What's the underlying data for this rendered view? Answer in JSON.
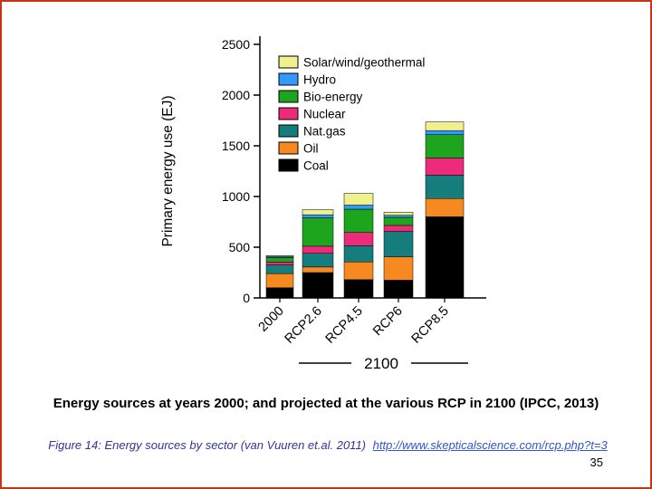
{
  "slide": {
    "caption_line1": "Energy sources at years 2000; and projected at the various RCP in 2100 (IPCC, 2013)",
    "figure_caption": "Figure 14: Energy sources by sector (van Vuuren et.al. 2011)",
    "figure_link": "http://www.skepticalscience.com/rcp.php?t=3",
    "page_number": "35"
  },
  "colors": {
    "slide_border": "#cc3311",
    "figure_text": "#333399",
    "link": "#3355cc",
    "axis": "#000000"
  },
  "chart_data": {
    "type": "bar",
    "stacked": true,
    "title": "",
    "xlabel": "",
    "ylabel": "Primary energy use (EJ)",
    "ylim": [
      0,
      2500
    ],
    "yticks": [
      0,
      500,
      1000,
      1500,
      2000,
      2500
    ],
    "grid": false,
    "legend_position": "upper-left-inside",
    "categories": [
      "2000",
      "RCP2.6",
      "RCP4.5",
      "RCP6",
      "RCP8.5"
    ],
    "group_label": "2100",
    "group_label_note": "brackets the four RCP bars",
    "series": [
      {
        "name": "Coal",
        "color": "#000000",
        "values": [
          100,
          250,
          180,
          175,
          800
        ]
      },
      {
        "name": "Oil",
        "color": "#f6891f",
        "values": [
          140,
          55,
          175,
          230,
          180
        ]
      },
      {
        "name": "Nat.gas",
        "color": "#167d7d",
        "values": [
          85,
          135,
          160,
          250,
          230
        ]
      },
      {
        "name": "Nuclear",
        "color": "#ee2a7b",
        "values": [
          28,
          70,
          130,
          60,
          170
        ]
      },
      {
        "name": "Bio-energy",
        "color": "#1da51d",
        "values": [
          45,
          280,
          230,
          80,
          230
        ]
      },
      {
        "name": "Hydro",
        "color": "#3399ff",
        "values": [
          12,
          30,
          40,
          20,
          40
        ]
      },
      {
        "name": "Solar/wind/geothermal",
        "color": "#f0f08c",
        "values": [
          8,
          50,
          115,
          30,
          85
        ]
      }
    ],
    "legend_order_top_to_bottom": [
      "Solar/wind/geothermal",
      "Hydro",
      "Bio-energy",
      "Nuclear",
      "Nat.gas",
      "Oil",
      "Coal"
    ]
  }
}
